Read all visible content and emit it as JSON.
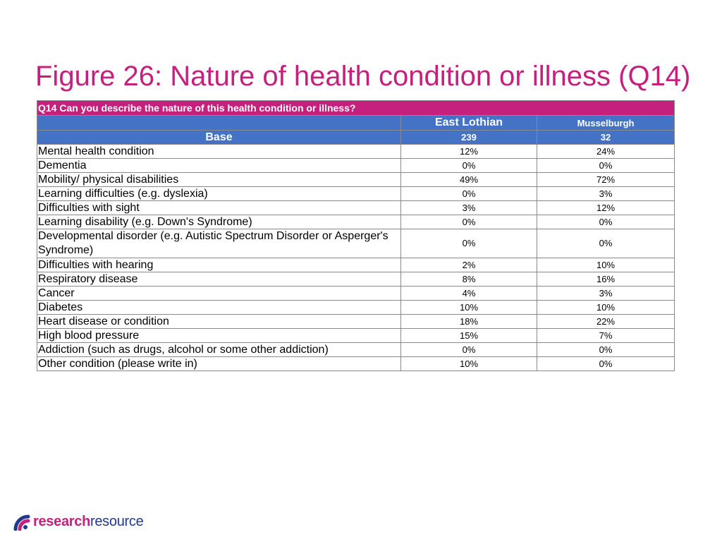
{
  "title": "Figure 26: Nature of health condition or illness (Q14)",
  "colors": {
    "accent": "#c6207e",
    "header_blue": "#4472c4",
    "logo_blue": "#1f3a8a"
  },
  "chart_data": {
    "type": "table",
    "question": "Q14 Can you describe the nature of this health condition or illness?",
    "columns": [
      "East Lothian",
      "Musselburgh"
    ],
    "base_label": "Base",
    "base": [
      "239",
      "32"
    ],
    "rows": [
      {
        "label": "Mental health condition",
        "values": [
          "12%",
          "24%"
        ]
      },
      {
        "label": "Dementia",
        "values": [
          "0%",
          "0%"
        ]
      },
      {
        "label": "Mobility/ physical disabilities",
        "values": [
          "49%",
          "72%"
        ]
      },
      {
        "label": "Learning difficulties (e.g. dyslexia)",
        "values": [
          "0%",
          "3%"
        ]
      },
      {
        "label": "Difficulties with sight",
        "values": [
          "3%",
          "12%"
        ]
      },
      {
        "label": "Learning disability (e.g. Down's Syndrome)",
        "values": [
          "0%",
          "0%"
        ]
      },
      {
        "label": "Developmental disorder (e.g. Autistic Spectrum Disorder or Asperger's Syndrome)",
        "values": [
          "0%",
          "0%"
        ]
      },
      {
        "label": "Difficulties with hearing",
        "values": [
          "2%",
          "10%"
        ]
      },
      {
        "label": "Respiratory disease",
        "values": [
          "8%",
          "16%"
        ]
      },
      {
        "label": "Cancer",
        "values": [
          "4%",
          "3%"
        ]
      },
      {
        "label": "Diabetes",
        "values": [
          "10%",
          "10%"
        ]
      },
      {
        "label": "Heart disease or condition",
        "values": [
          "18%",
          "22%"
        ]
      },
      {
        "label": "High blood pressure",
        "values": [
          "15%",
          "7%"
        ]
      },
      {
        "label": "Addiction (such as drugs, alcohol or some other addiction)",
        "values": [
          "0%",
          "0%"
        ]
      },
      {
        "label": "Other condition (please write in)",
        "values": [
          "10%",
          "0%"
        ]
      }
    ]
  },
  "logo": {
    "part1": "research",
    "part2": "resource",
    "icon": "arc-logo-icon"
  }
}
